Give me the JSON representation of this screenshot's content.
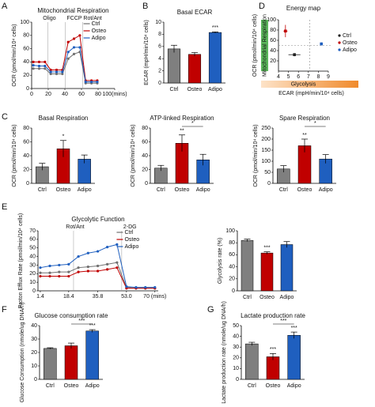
{
  "chart_data": [
    {
      "type": "line",
      "letter": "A",
      "title": "Mitochondrial Respiration",
      "annotations": [
        "Oligo",
        "FCCP Rot/Ant"
      ],
      "ylabel": "OCR (pmol/min/10⁴ cells)",
      "x": [
        2,
        9,
        16,
        23,
        30,
        37,
        44,
        51,
        58,
        65,
        72,
        79
      ],
      "xlim": [
        0,
        100
      ],
      "xticks": [
        0,
        20,
        40,
        60,
        80,
        {
          "value": 100,
          "label": "100(mins)"
        }
      ],
      "ylim": [
        0,
        100
      ],
      "yticks": [
        0,
        20,
        40,
        60,
        80,
        100
      ],
      "series": [
        {
          "name": "Ctrl",
          "color": "#707070",
          "values": [
            30,
            30,
            30,
            22,
            22,
            22,
            45,
            52,
            55,
            8,
            8,
            8
          ]
        },
        {
          "name": "Osteo",
          "color": "#c00000",
          "values": [
            40,
            40,
            40,
            28,
            28,
            28,
            70,
            75,
            80,
            12,
            12,
            12
          ]
        },
        {
          "name": "Adipo",
          "color": "#1f5fbf",
          "values": [
            35,
            34,
            34,
            25,
            25,
            25,
            55,
            62,
            62,
            10,
            10,
            10
          ]
        }
      ]
    },
    {
      "type": "bar",
      "letter": "B",
      "title": "Basal ECAR",
      "ylabel": "ECAR (mpH/min/10⁴ cells)",
      "categories": [
        "Ctrl",
        "Osteo",
        "Adipo"
      ],
      "values": [
        5.6,
        4.7,
        8.3
      ],
      "errors": [
        0.6,
        0.3,
        0.1
      ],
      "colors": [
        "#7f7f7f",
        "#c00000",
        "#1f5fbf"
      ],
      "ylim": [
        0,
        10
      ],
      "yticks": [
        0,
        2,
        4,
        6,
        8,
        10
      ],
      "annotations": [
        "***"
      ]
    },
    {
      "type": "scatter",
      "letter": "D",
      "title": "Energy map",
      "xlabel": "ECAR (mpH/min/10⁴ cells)",
      "ylabel": "OCR (pmol/min/10⁴ cells)",
      "annotations": [
        "Mitochondrial Respiration",
        "Glycolysis"
      ],
      "xlim": [
        4,
        9
      ],
      "xticks": [
        4,
        5,
        6,
        7,
        8,
        9
      ],
      "ylim": [
        0,
        100
      ],
      "yticks": [
        20,
        40,
        60,
        80,
        100
      ],
      "series": [
        {
          "name": "Ctrl",
          "color": "#222222",
          "x": [
            5.6
          ],
          "xerr": [
            0.6
          ],
          "values": [
            32
          ],
          "errors": [
            3
          ]
        },
        {
          "name": "Osteo",
          "color": "#c00000",
          "x": [
            4.7
          ],
          "xerr": [
            0.2
          ],
          "values": [
            78
          ],
          "errors": [
            12
          ]
        },
        {
          "name": "Adipo",
          "color": "#1f5fbf",
          "x": [
            8.3
          ],
          "xerr": [
            0.1
          ],
          "values": [
            53
          ],
          "errors": [
            3
          ]
        }
      ]
    },
    {
      "type": "bar",
      "letter": "C",
      "title": "Basal Respiration",
      "ylabel": "OCR (pmol/min/10⁴ cells)",
      "categories": [
        "Ctrl",
        "Osteo",
        "Adipo"
      ],
      "values": [
        24,
        50,
        35
      ],
      "errors": [
        5,
        12,
        6
      ],
      "colors": [
        "#7f7f7f",
        "#c00000",
        "#1f5fbf"
      ],
      "ylim": [
        0,
        80
      ],
      "yticks": [
        0,
        20,
        40,
        60,
        80
      ],
      "annotations": [
        "*"
      ]
    },
    {
      "type": "bar",
      "title": "ATP-linked Respiration",
      "ylabel": "OCR (pmol/min/10⁴ cells)",
      "categories": [
        "Ctrl",
        "Osteo",
        "Adipo"
      ],
      "values": [
        22,
        58,
        34
      ],
      "errors": [
        4,
        12,
        8
      ],
      "colors": [
        "#7f7f7f",
        "#c00000",
        "#1f5fbf"
      ],
      "ylim": [
        0,
        80
      ],
      "yticks": [
        0,
        20,
        40,
        60,
        80
      ],
      "annotations": [
        "**",
        "*"
      ]
    },
    {
      "type": "bar",
      "title": "Spare Respiration",
      "ylabel": "OCR (pmol/min/10⁴ cells)",
      "categories": [
        "Ctrl",
        "Osteo",
        "Adipo"
      ],
      "values": [
        65,
        170,
        110
      ],
      "errors": [
        15,
        30,
        20
      ],
      "colors": [
        "#7f7f7f",
        "#c00000",
        "#1f5fbf"
      ],
      "ylim": [
        0,
        250
      ],
      "yticks": [
        0,
        50,
        100,
        150,
        200,
        250
      ],
      "annotations": [
        "**",
        "*"
      ]
    },
    {
      "type": "line",
      "letter": "E",
      "title": "Glycolytic Function",
      "annotations": [
        "Rot/Ant",
        "2-DG"
      ],
      "ylabel": "Proton Efflux Rate (pmol/min/10⁴ cells)",
      "x": [
        1.4,
        7.1,
        12.7,
        18.4,
        24.2,
        30,
        35.8,
        41.5,
        47.3,
        53,
        58.7,
        64.3,
        70
      ],
      "xlim": [
        0,
        72
      ],
      "xticks": [
        1.4,
        18.4,
        35.8,
        {
          "value": 53,
          "label": "53.0"
        },
        {
          "value": 70,
          "label": "70 (mins)"
        }
      ],
      "ylim": [
        0,
        70
      ],
      "yticks": [
        0,
        10,
        20,
        30,
        40,
        50,
        60,
        70
      ],
      "series": [
        {
          "name": "Ctrl",
          "color": "#707070",
          "values": [
            21,
            21,
            22,
            22,
            27,
            28,
            29,
            31,
            33,
            4,
            3,
            3,
            3
          ]
        },
        {
          "name": "Osteo",
          "color": "#c00000",
          "values": [
            17,
            17,
            17,
            17,
            22,
            23,
            23,
            25,
            27,
            3,
            3,
            3,
            3
          ]
        },
        {
          "name": "Adipo",
          "color": "#1f5fbf",
          "values": [
            27,
            29,
            30,
            31,
            40,
            44,
            46,
            51,
            54,
            5,
            4,
            4,
            4
          ]
        }
      ]
    },
    {
      "type": "bar",
      "ylabel": "Glycolysis rate (%)",
      "categories": [
        "Ctrl",
        "Osteo",
        "Adipo"
      ],
      "values": [
        84,
        63,
        77
      ],
      "errors": [
        2,
        2,
        5
      ],
      "colors": [
        "#7f7f7f",
        "#c00000",
        "#1f5fbf"
      ],
      "ylim": [
        0,
        100
      ],
      "yticks": [
        0,
        20,
        40,
        60,
        80,
        100
      ],
      "annotations": [
        "***"
      ]
    },
    {
      "type": "bar",
      "letter": "F",
      "title": "Glucose consumption rate",
      "ylabel": "Glucose Consumption (nmole/ug DNA/h)",
      "categories": [
        "Ctrl",
        "Osteo",
        "Adipo"
      ],
      "values": [
        23,
        25,
        36
      ],
      "errors": [
        0.5,
        2,
        1
      ],
      "colors": [
        "#7f7f7f",
        "#c00000",
        "#1f5fbf"
      ],
      "ylim": [
        0,
        40
      ],
      "yticks": [
        0,
        10,
        20,
        30,
        40
      ],
      "annotations": [
        "***",
        "***"
      ]
    },
    {
      "type": "bar",
      "letter": "G",
      "title": "Lactate production rate",
      "ylabel": "Lactate production rate (nmole/ug DNA/h)",
      "categories": [
        "Ctrl",
        "Osteo",
        "Adipo"
      ],
      "values": [
        33,
        21,
        41
      ],
      "errors": [
        1.5,
        3,
        3
      ],
      "colors": [
        "#7f7f7f",
        "#c00000",
        "#1f5fbf"
      ],
      "ylim": [
        0,
        50
      ],
      "yticks": [
        0,
        10,
        20,
        30,
        40,
        50
      ],
      "annotations": [
        "***",
        "***",
        "***"
      ]
    }
  ]
}
